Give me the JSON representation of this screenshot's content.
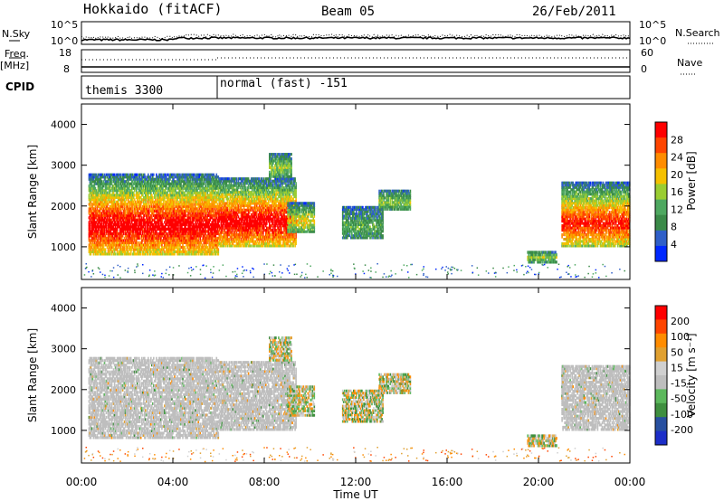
{
  "header": {
    "station": "Hokkaido (fitACF)",
    "beam": "Beam 05",
    "date": "26/Feb/2011"
  },
  "noise_panel": {
    "left_label": "N.Sky",
    "left_ticks": [
      "10^5",
      "10^0"
    ],
    "right_ticks": [
      "10^5",
      "10^0"
    ],
    "right_label": "N.Search"
  },
  "freq_panel": {
    "left_label_1": "Freq.",
    "left_label_2": "[MHz]",
    "left_ticks": [
      "18",
      "8"
    ],
    "right_ticks": [
      "60",
      "0"
    ],
    "right_label": "Nave"
  },
  "cpid_panel": {
    "label": "CPID",
    "modes": [
      {
        "name": "themis 3300",
        "start_hour": 0
      },
      {
        "name": "normal (fast) -151",
        "start_hour": 6
      }
    ]
  },
  "colors": {
    "power": [
      "#0028ff",
      "#2f5fc8",
      "#3a8a48",
      "#4ea860",
      "#9acd32",
      "#f5c000",
      "#ff8c00",
      "#ff4500",
      "#ff0000"
    ],
    "velocity": [
      "#1c2ec8",
      "#2850a0",
      "#3f8f3f",
      "#5cb85c",
      "#bebebe",
      "#d0d0d0",
      "#e0a030",
      "#ff8c00",
      "#ff4500",
      "#ff0000"
    ]
  },
  "chart_data": [
    {
      "type": "heatmap",
      "title": "Power",
      "xlabel": "",
      "ylabel": "Slant Range [km]",
      "xlim_hours": [
        0,
        24
      ],
      "ylim": [
        200,
        4500
      ],
      "y_ticks": [
        "1000",
        "2000",
        "3000",
        "4000"
      ],
      "colorbar_label": "Power [dB]",
      "colorbar_ticks": [
        "4",
        "8",
        "12",
        "16",
        "20",
        "24",
        "28"
      ],
      "color_scale": "power",
      "regions": [
        {
          "x0": 0.3,
          "x1": 6.0,
          "y0": 800,
          "y1": 2800,
          "level": 8
        },
        {
          "x0": 6.0,
          "x1": 9.4,
          "y0": 1000,
          "y1": 2700,
          "level": 8
        },
        {
          "x0": 9.0,
          "x1": 10.2,
          "y0": 1350,
          "y1": 2100,
          "level": 4
        },
        {
          "x0": 8.2,
          "x1": 9.2,
          "y0": 2700,
          "y1": 3300,
          "level": 3
        },
        {
          "x0": 11.4,
          "x1": 13.2,
          "y0": 1200,
          "y1": 2000,
          "level": 2
        },
        {
          "x0": 13.0,
          "x1": 14.4,
          "y0": 1900,
          "y1": 2400,
          "level": 3
        },
        {
          "x0": 19.5,
          "x1": 20.8,
          "y0": 600,
          "y1": 900,
          "level": 3
        },
        {
          "x0": 21.0,
          "x1": 24.0,
          "y0": 1000,
          "y1": 2600,
          "level": 7
        }
      ]
    },
    {
      "type": "heatmap",
      "title": "Velocity",
      "xlabel": "Time UT",
      "ylabel": "Slant Range [km]",
      "xlim_hours": [
        0,
        24
      ],
      "ylim": [
        200,
        4500
      ],
      "y_ticks": [
        "1000",
        "2000",
        "3000",
        "4000"
      ],
      "x_ticks": [
        "00:00",
        "04:00",
        "08:00",
        "12:00",
        "16:00",
        "20:00",
        "00:00"
      ],
      "colorbar_label": "Velocity [m s⁻¹]",
      "colorbar_ticks": [
        "200",
        "100",
        "50",
        "15",
        "-15",
        "-50",
        "-100",
        "-200"
      ],
      "color_scale": "velocity"
    }
  ]
}
